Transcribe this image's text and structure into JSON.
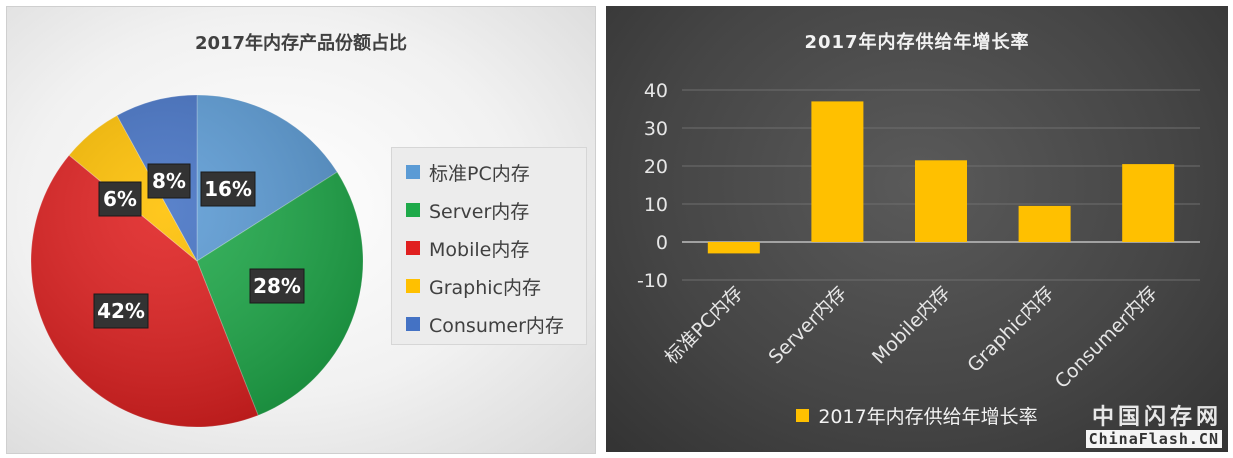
{
  "colors": {
    "pc": "#5b9bd5",
    "server": "#1faa4a",
    "mobile": "#e02020",
    "graphic": "#ffc000",
    "consumer": "#4472c4",
    "bar": "#ffc000"
  },
  "chart_data": [
    {
      "type": "pie",
      "title": "2017年内存产品份额占比",
      "categories": [
        "标准PC内存",
        "Server内存",
        "Mobile内存",
        "Graphic内存",
        "Consumer内存"
      ],
      "values": [
        16,
        28,
        42,
        6,
        8
      ],
      "data_labels": [
        "16%",
        "28%",
        "42%",
        "6%",
        "8%"
      ],
      "legend": "right"
    },
    {
      "type": "bar",
      "title": "2017年内存供给年增长率",
      "categories": [
        "标准PC内存",
        "Server内存",
        "Mobile内存",
        "Graphic内存",
        "Consumer内存"
      ],
      "series": [
        {
          "name": "2017年内存供给年增长率",
          "values": [
            -3,
            37,
            21.5,
            9.5,
            20.5
          ]
        }
      ],
      "ylim": [
        -10,
        40
      ],
      "yticks": [
        "40",
        "30",
        "20",
        "10",
        "0",
        "-10"
      ],
      "grid": true,
      "legend": "bottom"
    }
  ],
  "watermark": {
    "top": "中国闪存网",
    "bottom": "ChinaFlash.CN"
  }
}
